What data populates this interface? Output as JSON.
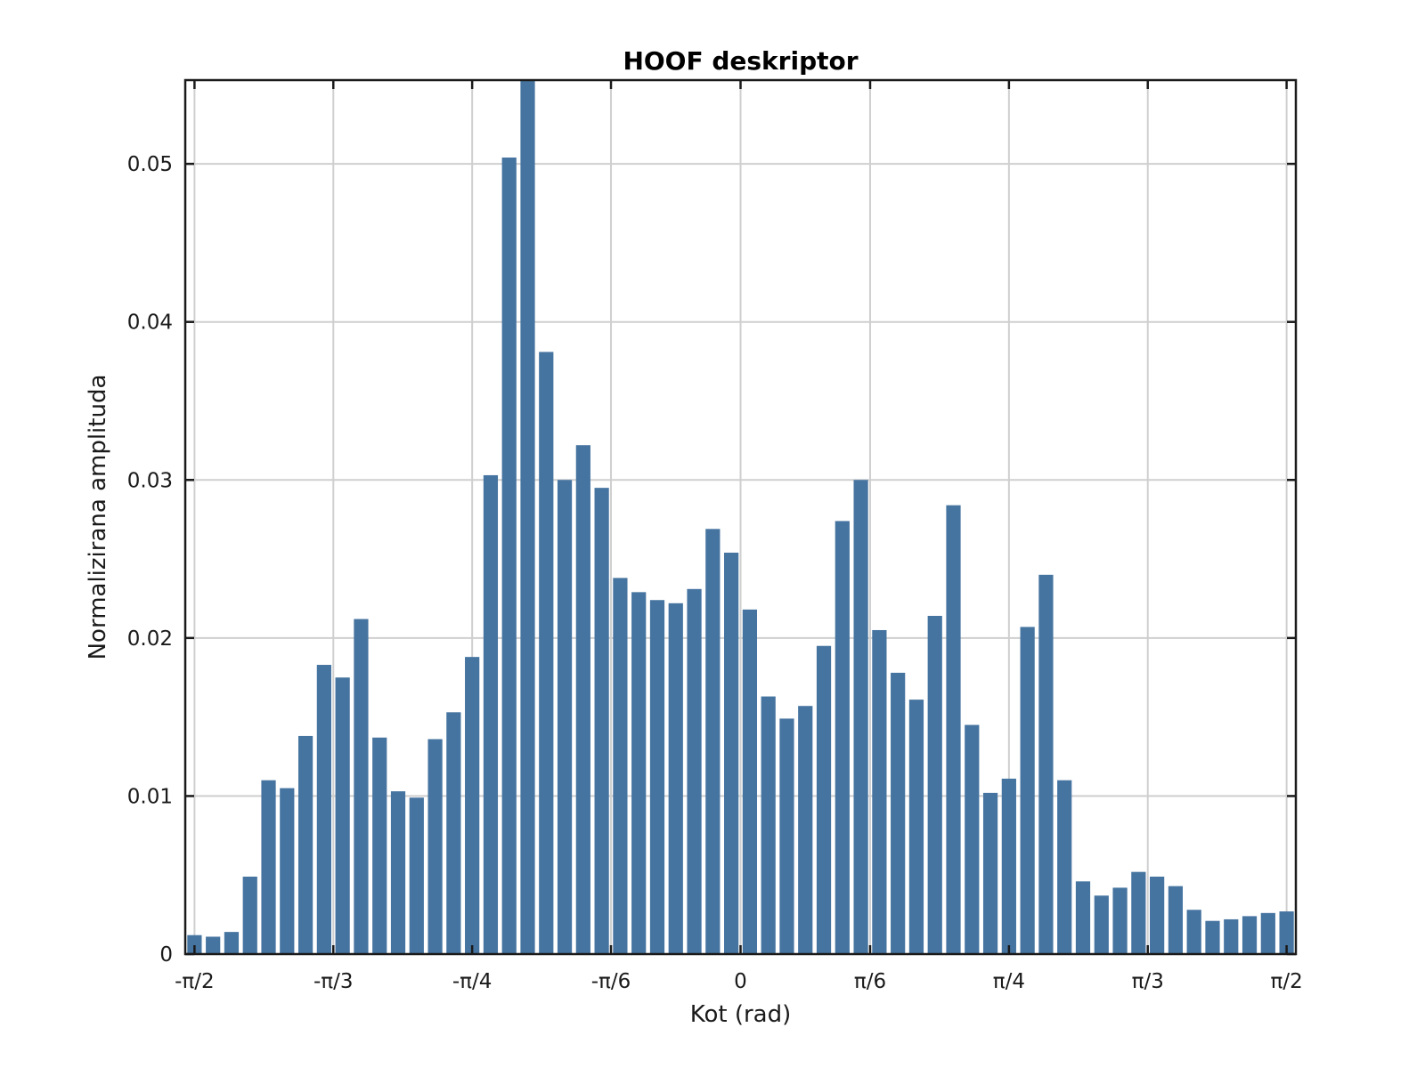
{
  "chart_data": {
    "type": "bar",
    "title": "HOOF deskriptor",
    "xlabel": "Kot (rad)",
    "ylabel": "Normalizirana amplituda",
    "bar_color": "#4674a0",
    "grid": true,
    "ylim": [
      0,
      0.0553
    ],
    "xlim_bins": [
      -0.5,
      59.5
    ],
    "yticks": [
      {
        "value": 0,
        "label": "0"
      },
      {
        "value": 0.01,
        "label": "0.01"
      },
      {
        "value": 0.02,
        "label": "0.02"
      },
      {
        "value": 0.03,
        "label": "0.03"
      },
      {
        "value": 0.04,
        "label": "0.04"
      },
      {
        "value": 0.05,
        "label": "0.05"
      }
    ],
    "xticks": [
      {
        "bin": 0,
        "label": "-π/2"
      },
      {
        "bin": 7.5,
        "label": "-π/3"
      },
      {
        "bin": 15,
        "label": "-π/4"
      },
      {
        "bin": 22.5,
        "label": "-π/6"
      },
      {
        "bin": 29.5,
        "label": "0"
      },
      {
        "bin": 36.5,
        "label": "π/6"
      },
      {
        "bin": 44,
        "label": "π/4"
      },
      {
        "bin": 51.5,
        "label": "π/3"
      },
      {
        "bin": 59,
        "label": "π/2"
      }
    ],
    "values": [
      0.0012,
      0.0011,
      0.0014,
      0.0049,
      0.011,
      0.0105,
      0.0138,
      0.0183,
      0.0175,
      0.0212,
      0.0137,
      0.0103,
      0.0099,
      0.0136,
      0.0153,
      0.0188,
      0.0303,
      0.0504,
      0.0553,
      0.0381,
      0.03,
      0.0322,
      0.0295,
      0.0238,
      0.0229,
      0.0224,
      0.0222,
      0.0231,
      0.0269,
      0.0254,
      0.0218,
      0.0163,
      0.0149,
      0.0157,
      0.0195,
      0.0274,
      0.03,
      0.0205,
      0.0178,
      0.0161,
      0.0214,
      0.0284,
      0.0145,
      0.0102,
      0.0111,
      0.0207,
      0.024,
      0.011,
      0.0046,
      0.0037,
      0.0042,
      0.0052,
      0.0049,
      0.0043,
      0.0028,
      0.0021,
      0.0022,
      0.0024,
      0.0026,
      0.0027
    ]
  }
}
